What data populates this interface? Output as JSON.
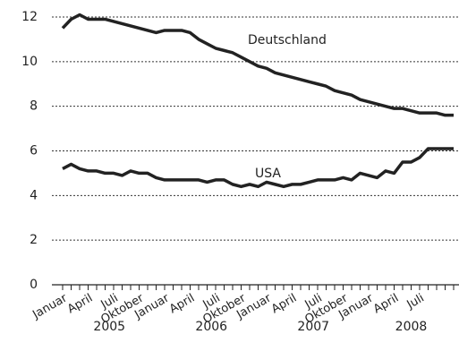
{
  "chart_data": {
    "type": "line",
    "categories": [
      "Januar",
      null,
      null,
      "April",
      null,
      null,
      "Juli",
      null,
      null,
      "Oktober",
      null,
      null,
      "Januar",
      null,
      null,
      "April",
      null,
      null,
      "Juli",
      null,
      null,
      "Oktober",
      null,
      null,
      "Januar",
      null,
      null,
      "April",
      null,
      null,
      "Juli",
      null,
      null,
      "Oktober",
      null,
      null,
      "Januar",
      null,
      null,
      "April",
      null,
      null,
      "Juli",
      null,
      null,
      null,
      null
    ],
    "x_groups": [
      "2005",
      "2006",
      "2007",
      "2008"
    ],
    "series": [
      {
        "name": "Deutschland",
        "color": "#222222",
        "values": [
          11.5,
          11.9,
          12.1,
          11.9,
          11.9,
          11.9,
          11.8,
          11.7,
          11.6,
          11.5,
          11.4,
          11.3,
          11.4,
          11.4,
          11.4,
          11.3,
          11.0,
          10.8,
          10.6,
          10.5,
          10.4,
          10.2,
          10.0,
          9.8,
          9.7,
          9.5,
          9.4,
          9.3,
          9.2,
          9.1,
          9.0,
          8.9,
          8.7,
          8.6,
          8.5,
          8.3,
          8.2,
          8.1,
          8.0,
          7.9,
          7.9,
          7.8,
          7.7,
          7.7,
          7.7,
          7.6,
          7.6
        ]
      },
      {
        "name": "USA",
        "color": "#222222",
        "values": [
          5.2,
          5.4,
          5.2,
          5.1,
          5.1,
          5.0,
          5.0,
          4.9,
          5.1,
          5.0,
          5.0,
          4.8,
          4.7,
          4.7,
          4.7,
          4.7,
          4.7,
          4.6,
          4.7,
          4.7,
          4.5,
          4.4,
          4.5,
          4.4,
          4.6,
          4.5,
          4.4,
          4.5,
          4.5,
          4.6,
          4.7,
          4.7,
          4.7,
          4.8,
          4.7,
          5.0,
          4.9,
          4.8,
          5.1,
          5.0,
          5.5,
          5.5,
          5.7,
          6.1,
          6.1,
          6.1,
          6.1
        ]
      }
    ],
    "ylim": [
      0,
      12
    ],
    "yticks": [
      0,
      2,
      4,
      6,
      8,
      10,
      12
    ],
    "grid": true
  }
}
